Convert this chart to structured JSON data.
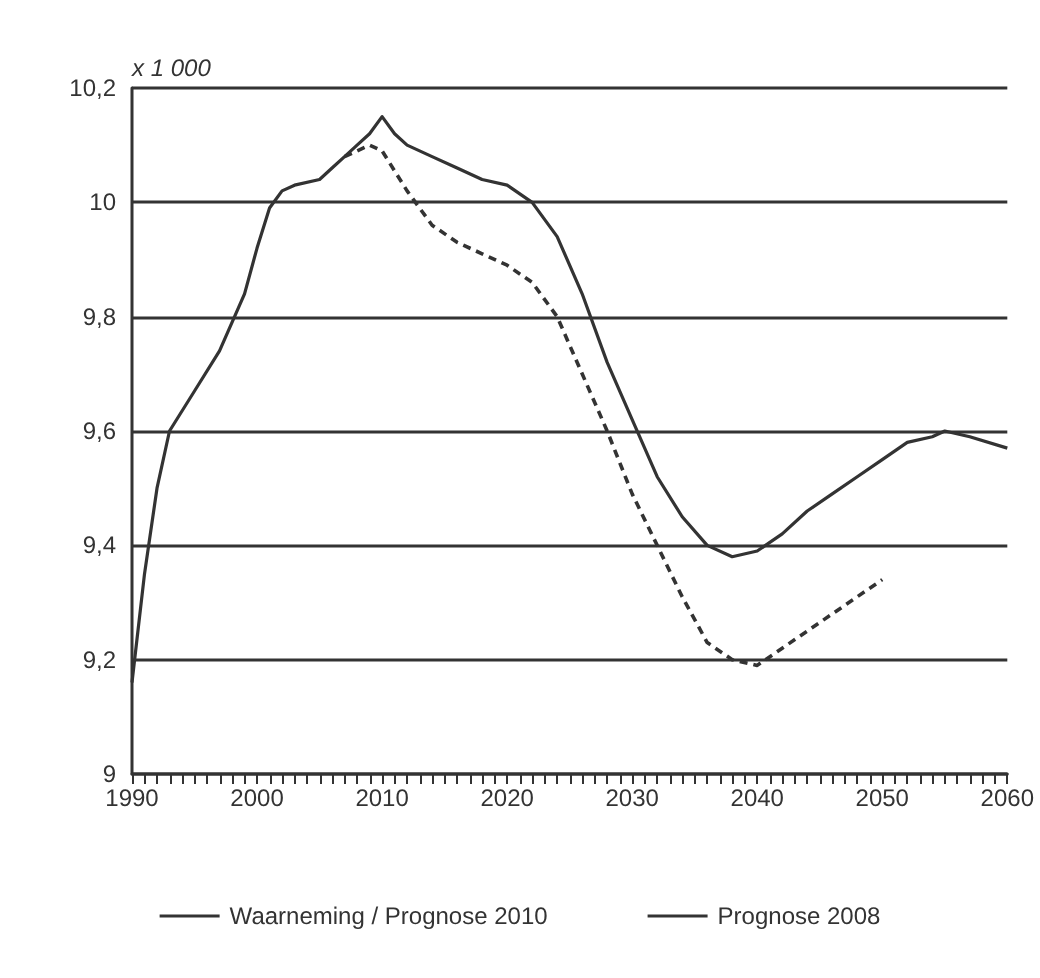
{
  "chart_data": {
    "type": "line",
    "ylabel": "x 1 000",
    "legend": "bottom",
    "grid": "y",
    "marker": "none",
    "xlim": [
      1990,
      2060
    ],
    "ylim": [
      9,
      10.2
    ],
    "yticks": [
      {
        "value": 9,
        "label": "9"
      },
      {
        "value": 9.2,
        "label": "9,2"
      },
      {
        "value": 9.4,
        "label": "9,4"
      },
      {
        "value": 9.6,
        "label": "9,6"
      },
      {
        "value": 9.8,
        "label": "9,8"
      },
      {
        "value": 10,
        "label": "10"
      },
      {
        "value": 10.2,
        "label": "10,2"
      }
    ],
    "xticks": [
      1990,
      {
        "value": 1991,
        "label": null
      },
      {
        "value": 1992,
        "label": null
      },
      {
        "value": 1993,
        "label": null
      },
      {
        "value": 1994,
        "label": null
      },
      {
        "value": 1995,
        "label": null
      },
      {
        "value": 1996,
        "label": null
      },
      {
        "value": 1997,
        "label": null
      },
      {
        "value": 1998,
        "label": null
      },
      {
        "value": 1999,
        "label": null
      },
      2000,
      {
        "value": 2001,
        "label": null
      },
      {
        "value": 2002,
        "label": null
      },
      {
        "value": 2003,
        "label": null
      },
      {
        "value": 2004,
        "label": null
      },
      {
        "value": 2005,
        "label": null
      },
      {
        "value": 2006,
        "label": null
      },
      {
        "value": 2007,
        "label": null
      },
      {
        "value": 2008,
        "label": null
      },
      {
        "value": 2009,
        "label": null
      },
      2010,
      {
        "value": 2011,
        "label": null
      },
      {
        "value": 2012,
        "label": null
      },
      {
        "value": 2013,
        "label": null
      },
      {
        "value": 2014,
        "label": null
      },
      {
        "value": 2015,
        "label": null
      },
      {
        "value": 2016,
        "label": null
      },
      {
        "value": 2017,
        "label": null
      },
      {
        "value": 2018,
        "label": null
      },
      {
        "value": 2019,
        "label": null
      },
      2020,
      {
        "value": 2021,
        "label": null
      },
      {
        "value": 2022,
        "label": null
      },
      {
        "value": 2023,
        "label": null
      },
      {
        "value": 2024,
        "label": null
      },
      {
        "value": 2025,
        "label": null
      },
      {
        "value": 2026,
        "label": null
      },
      {
        "value": 2027,
        "label": null
      },
      {
        "value": 2028,
        "label": null
      },
      {
        "value": 2029,
        "label": null
      },
      2030,
      {
        "value": 2031,
        "label": null
      },
      {
        "value": 2032,
        "label": null
      },
      {
        "value": 2033,
        "label": null
      },
      {
        "value": 2034,
        "label": null
      },
      {
        "value": 2035,
        "label": null
      },
      {
        "value": 2036,
        "label": null
      },
      {
        "value": 2037,
        "label": null
      },
      {
        "value": 2038,
        "label": null
      },
      {
        "value": 2039,
        "label": null
      },
      2040,
      {
        "value": 2041,
        "label": null
      },
      {
        "value": 2042,
        "label": null
      },
      {
        "value": 2043,
        "label": null
      },
      {
        "value": 2044,
        "label": null
      },
      {
        "value": 2045,
        "label": null
      },
      {
        "value": 2046,
        "label": null
      },
      {
        "value": 2047,
        "label": null
      },
      {
        "value": 2048,
        "label": null
      },
      {
        "value": 2049,
        "label": null
      },
      2050,
      {
        "value": 2051,
        "label": null
      },
      {
        "value": 2052,
        "label": null
      },
      {
        "value": 2053,
        "label": null
      },
      {
        "value": 2054,
        "label": null
      },
      {
        "value": 2055,
        "label": null
      },
      {
        "value": 2056,
        "label": null
      },
      {
        "value": 2057,
        "label": null
      },
      {
        "value": 2058,
        "label": null
      },
      {
        "value": 2059,
        "label": null
      },
      2060
    ],
    "series": [
      {
        "name": "Waarneming / Prognose 2010",
        "color": "#333333",
        "line_style": "solid",
        "x": [
          1990,
          1991,
          1992,
          1993,
          1995,
          1997,
          1999,
          2000,
          2001,
          2002,
          2003,
          2005,
          2006,
          2007,
          2008,
          2009,
          2010,
          2011,
          2012,
          2014,
          2016,
          2018,
          2020,
          2022,
          2024,
          2026,
          2028,
          2030,
          2032,
          2034,
          2036,
          2038,
          2040,
          2042,
          2044,
          2046,
          2048,
          2050,
          2052,
          2054,
          2055,
          2057,
          2060
        ],
        "values": [
          9.16,
          9.35,
          9.5,
          9.6,
          9.67,
          9.74,
          9.84,
          9.92,
          9.99,
          10.02,
          10.03,
          10.04,
          10.06,
          10.08,
          10.1,
          10.12,
          10.15,
          10.12,
          10.1,
          10.08,
          10.06,
          10.04,
          10.03,
          10,
          9.94,
          9.84,
          9.72,
          9.62,
          9.52,
          9.45,
          9.4,
          9.38,
          9.39,
          9.42,
          9.46,
          9.49,
          9.52,
          9.55,
          9.58,
          9.59,
          9.6,
          9.59,
          9.57
        ]
      },
      {
        "name": "Prognose 2008",
        "color": "#333333",
        "line_style": "dashed",
        "x": [
          2007,
          2009,
          2010,
          2012,
          2014,
          2016,
          2018,
          2020,
          2022,
          2024,
          2026,
          2028,
          2030,
          2032,
          2034,
          2036,
          2038,
          2040,
          2042,
          2044,
          2046,
          2048,
          2050
        ],
        "values": [
          10.08,
          10.1,
          10.09,
          10.02,
          9.96,
          9.93,
          9.91,
          9.89,
          9.86,
          9.8,
          9.7,
          9.6,
          9.49,
          9.4,
          9.31,
          9.23,
          9.2,
          9.19,
          9.22,
          9.25,
          9.28,
          9.31,
          9.34
        ]
      }
    ]
  }
}
